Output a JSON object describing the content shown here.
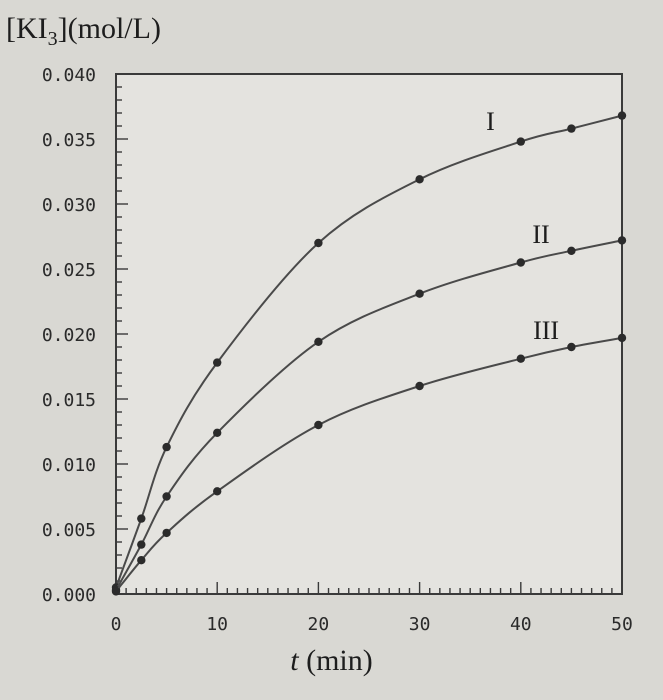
{
  "chart_data": {
    "type": "line",
    "ylabel_bracket": "[KI",
    "ylabel_sub": "3",
    "ylabel_rest": "](mol/L)",
    "xlabel_var": "t",
    "xlabel_unit": "(min)",
    "xlim": [
      0,
      50
    ],
    "ylim": [
      0,
      0.04
    ],
    "x_ticks": [
      "0",
      "10",
      "20",
      "30",
      "40",
      "50"
    ],
    "y_ticks": [
      "0.000",
      "0.005",
      "0.010",
      "0.015",
      "0.020",
      "0.025",
      "0.030",
      "0.035",
      "0.040"
    ],
    "grid": false,
    "series": [
      {
        "name": "I",
        "x": [
          0,
          2.5,
          5,
          10,
          20,
          30,
          40,
          45,
          50
        ],
        "y": [
          0.0005,
          0.0058,
          0.0113,
          0.0178,
          0.027,
          0.0319,
          0.0348,
          0.0358,
          0.0368
        ]
      },
      {
        "name": "II",
        "x": [
          0,
          2.5,
          5,
          10,
          20,
          30,
          40,
          45,
          50
        ],
        "y": [
          0.0003,
          0.0038,
          0.0075,
          0.0124,
          0.0194,
          0.0231,
          0.0255,
          0.0264,
          0.0272
        ]
      },
      {
        "name": "III",
        "x": [
          0,
          2.5,
          5,
          10,
          20,
          30,
          40,
          45,
          50
        ],
        "y": [
          0.0002,
          0.0026,
          0.0047,
          0.0079,
          0.013,
          0.016,
          0.0181,
          0.019,
          0.0197
        ]
      }
    ]
  }
}
